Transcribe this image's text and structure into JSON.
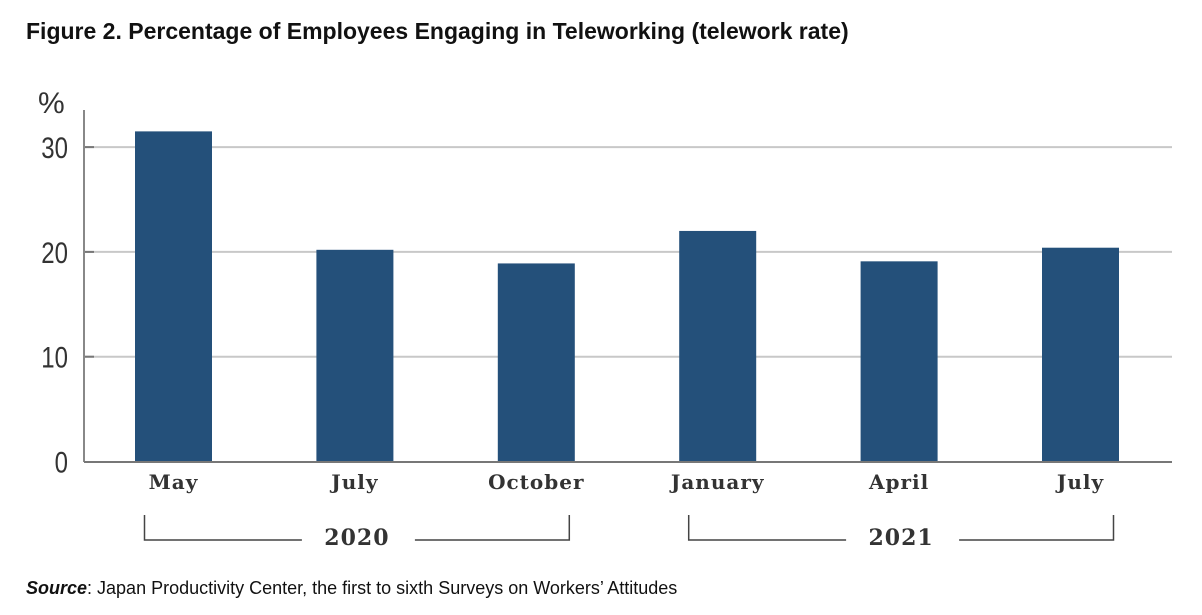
{
  "chart_data": {
    "type": "bar",
    "title": "Figure 2. Percentage of Employees Engaging in Teleworking (telework rate)",
    "ylabel": "%",
    "xlabel": "",
    "categories": [
      "May",
      "July",
      "October",
      "January",
      "April",
      "July"
    ],
    "values": [
      31.5,
      20.2,
      18.9,
      22.0,
      19.1,
      20.4
    ],
    "ylim": [
      0,
      33
    ],
    "yticks": [
      "0",
      "10",
      "20",
      "30"
    ],
    "year_groups": [
      {
        "label": "2020",
        "categories": [
          0,
          2
        ]
      },
      {
        "label": "2021",
        "categories": [
          3,
          5
        ]
      }
    ],
    "bar_color": "#24507a",
    "grid": true
  },
  "source": {
    "label": "Source",
    "text": ": Japan Productivity Center, the first to sixth Surveys on Workers’ Attitudes"
  }
}
